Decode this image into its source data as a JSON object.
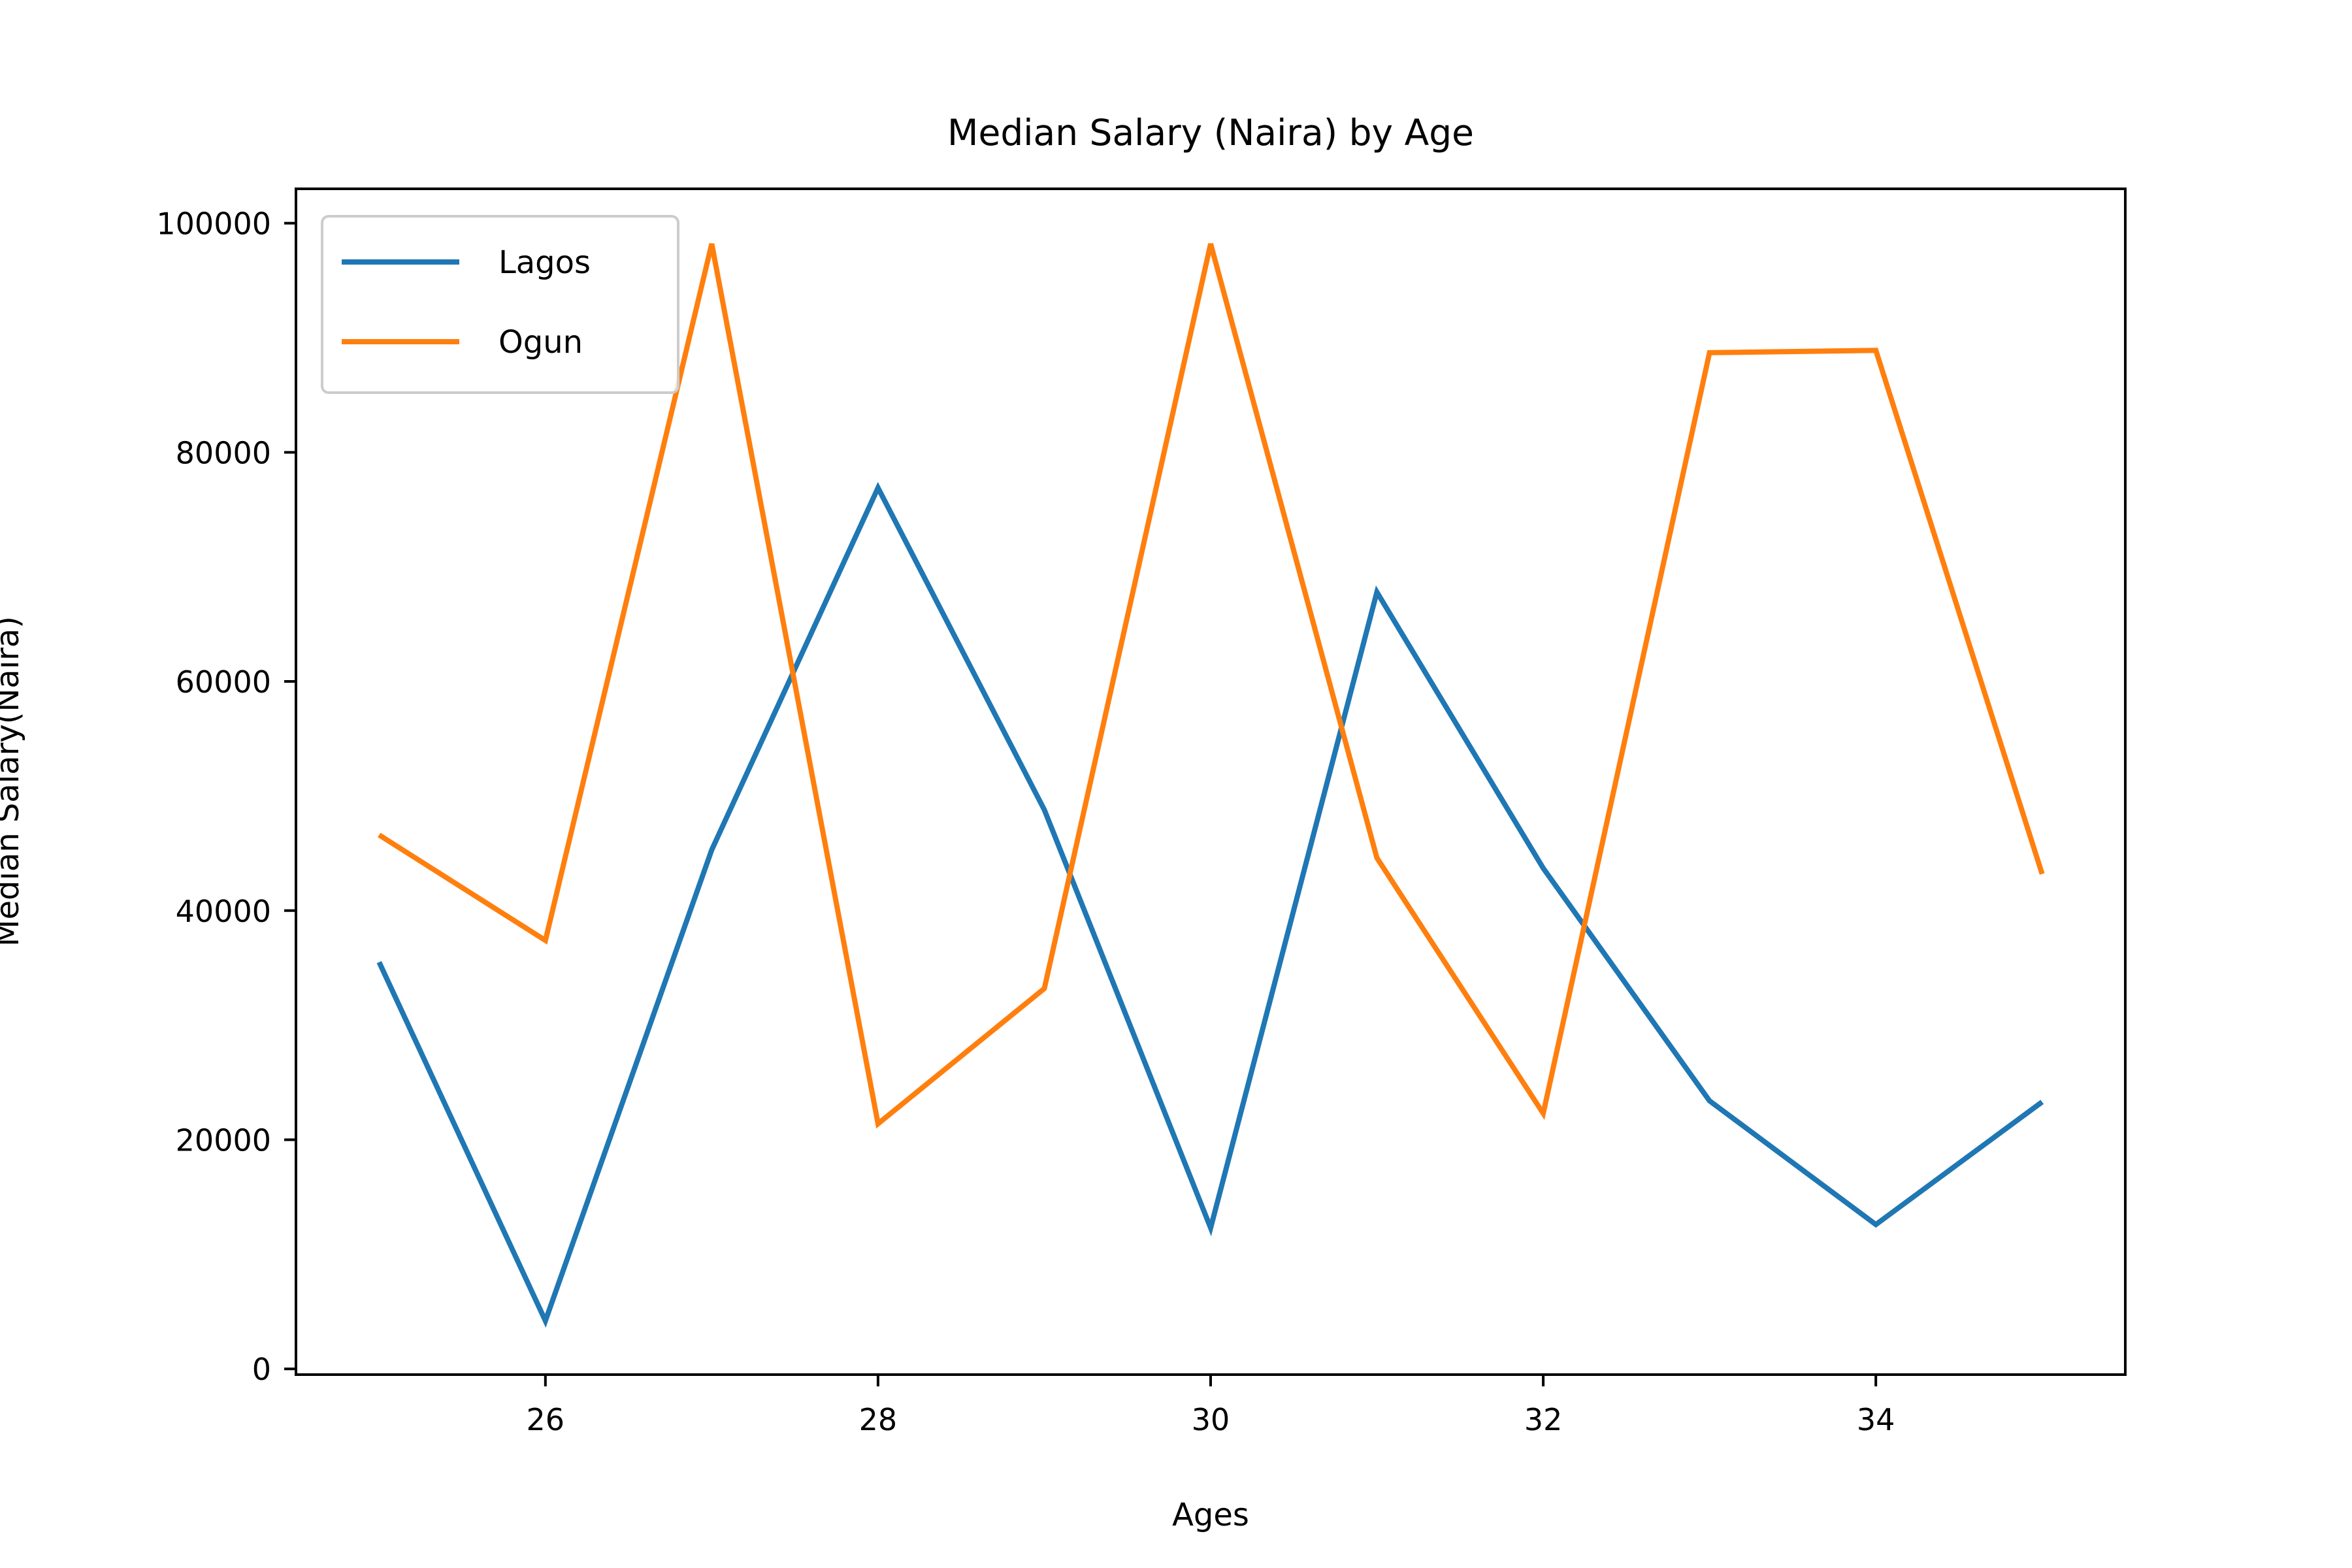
{
  "chart_data": {
    "type": "line",
    "title": "Median Salary (Naira) by Age",
    "xlabel": "Ages",
    "ylabel": "Median Salary(Naira)",
    "x": [
      25,
      26,
      27,
      28,
      29,
      30,
      31,
      32,
      33,
      34,
      35
    ],
    "xlim": [
      24.5,
      35.5
    ],
    "ylim": [
      -500,
      103000
    ],
    "xticks": [
      26,
      28,
      30,
      32,
      34
    ],
    "yticks": [
      0,
      20000,
      40000,
      60000,
      80000,
      100000
    ],
    "grid": false,
    "legend_position": "top-left",
    "series": [
      {
        "name": "Lagos",
        "color": "#1f77b4",
        "values": [
          35500,
          4200,
          45300,
          76900,
          48800,
          12300,
          67800,
          43700,
          23400,
          12600,
          23300
        ]
      },
      {
        "name": "Ogun",
        "color": "#ff7f0e",
        "values": [
          46600,
          37400,
          98200,
          21400,
          33200,
          98200,
          44600,
          22300,
          88700,
          88900,
          43200
        ]
      }
    ]
  }
}
